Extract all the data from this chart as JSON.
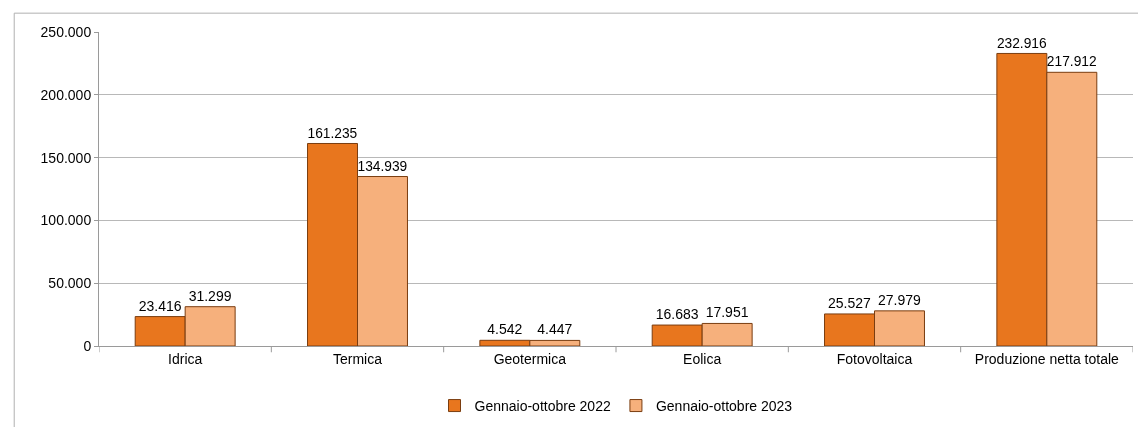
{
  "chart_data": {
    "type": "bar",
    "categories": [
      "Idrica",
      "Termica",
      "Geotermica",
      "Eolica",
      "Fotovoltaica",
      "Produzione netta totale"
    ],
    "series": [
      {
        "name": "Gennaio-ottobre 2022",
        "color": "#e8761e",
        "values": [
          23416,
          161235,
          4542,
          16683,
          25527,
          232916
        ],
        "value_labels": [
          "23.416",
          "161.235",
          "4.542",
          "16.683",
          "25.527",
          "232.916"
        ]
      },
      {
        "name": "Gennaio-ottobre 2023",
        "color": "#f6b07c",
        "values": [
          31299,
          134939,
          4447,
          17951,
          27979,
          217912
        ],
        "value_labels": [
          "31.299",
          "134.939",
          "4.447",
          "17.951",
          "27.979",
          "217.912"
        ]
      }
    ],
    "ylim": [
      0,
      250000
    ],
    "yticks": [
      0,
      {
        "value": 50000,
        "label": "50.000"
      },
      {
        "value": 100000,
        "label": "100.000"
      },
      {
        "value": 150000,
        "label": "150.000"
      },
      {
        "value": 200000,
        "label": "200.000"
      },
      {
        "value": 250000,
        "label": "250.000"
      }
    ],
    "grid": "y",
    "legend": "bottom"
  }
}
